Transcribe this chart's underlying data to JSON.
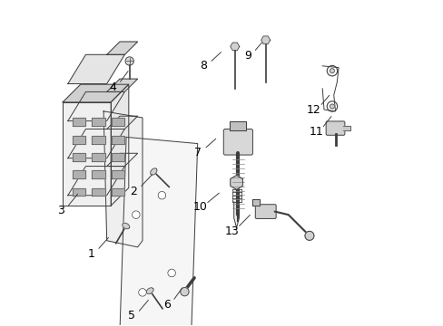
{
  "title": "",
  "background_color": "#ffffff",
  "line_color": "#3d3d3d",
  "label_color": "#000000",
  "label_fontsize": 9,
  "fig_width": 4.89,
  "fig_height": 3.6,
  "dpi": 100
}
